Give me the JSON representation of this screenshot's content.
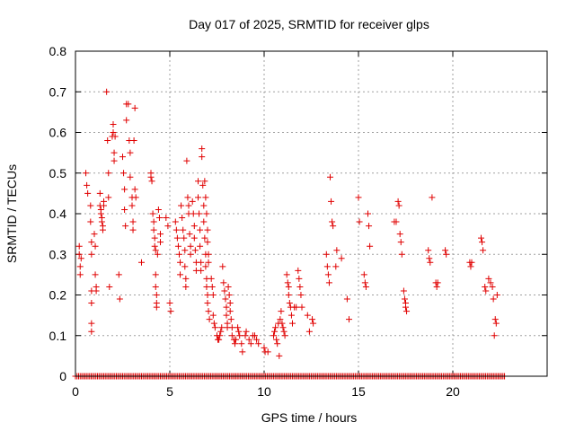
{
  "chart_data": {
    "type": "scatter",
    "title": "Day 017 of 2025, SRMTID for receiver glps",
    "xlabel": "GPS time / hours",
    "ylabel": "SRMTID / TECUs",
    "xlim": [
      0,
      25
    ],
    "ylim": [
      0,
      0.8
    ],
    "xticks": [
      0,
      5,
      10,
      15,
      20
    ],
    "yticks": [
      0,
      0.1,
      0.2,
      0.3,
      0.4,
      0.5,
      0.6,
      0.7,
      0.8
    ],
    "xtick_labels": [
      "0",
      "5",
      "10",
      "15",
      "20"
    ],
    "ytick_labels": [
      "0",
      "0.1",
      "0.2",
      "0.3",
      "0.4",
      "0.5",
      "0.6",
      "0.7",
      "0.8"
    ],
    "grid": true,
    "marker": "+",
    "series": [
      {
        "name": "SRMTID",
        "color": "#e00000",
        "points": [
          [
            0.2,
            0.32
          ],
          [
            0.2,
            0.3
          ],
          [
            0.25,
            0.27
          ],
          [
            0.25,
            0.25
          ],
          [
            0.3,
            0.29
          ],
          [
            0.55,
            0.5
          ],
          [
            0.6,
            0.47
          ],
          [
            0.65,
            0.45
          ],
          [
            0.8,
            0.42
          ],
          [
            0.8,
            0.38
          ],
          [
            0.85,
            0.33
          ],
          [
            0.85,
            0.3
          ],
          [
            0.85,
            0.21
          ],
          [
            0.85,
            0.18
          ],
          [
            0.85,
            0.13
          ],
          [
            0.85,
            0.11
          ],
          [
            1.0,
            0.35
          ],
          [
            1.05,
            0.32
          ],
          [
            1.05,
            0.25
          ],
          [
            1.1,
            0.22
          ],
          [
            1.1,
            0.21
          ],
          [
            1.3,
            0.45
          ],
          [
            1.3,
            0.42
          ],
          [
            1.35,
            0.41
          ],
          [
            1.35,
            0.4
          ],
          [
            1.4,
            0.39
          ],
          [
            1.4,
            0.38
          ],
          [
            1.45,
            0.37
          ],
          [
            1.45,
            0.36
          ],
          [
            1.5,
            0.43
          ],
          [
            1.5,
            0.42
          ],
          [
            1.65,
            0.7
          ],
          [
            1.7,
            0.58
          ],
          [
            1.75,
            0.5
          ],
          [
            1.75,
            0.44
          ],
          [
            1.8,
            0.22
          ],
          [
            1.95,
            0.59
          ],
          [
            2.0,
            0.62
          ],
          [
            2.0,
            0.6
          ],
          [
            2.05,
            0.55
          ],
          [
            2.05,
            0.53
          ],
          [
            2.1,
            0.59
          ],
          [
            2.3,
            0.25
          ],
          [
            2.35,
            0.19
          ],
          [
            2.5,
            0.54
          ],
          [
            2.55,
            0.5
          ],
          [
            2.6,
            0.46
          ],
          [
            2.6,
            0.41
          ],
          [
            2.65,
            0.37
          ],
          [
            2.7,
            0.67
          ],
          [
            2.7,
            0.63
          ],
          [
            2.8,
            0.67
          ],
          [
            2.85,
            0.58
          ],
          [
            2.9,
            0.55
          ],
          [
            2.9,
            0.49
          ],
          [
            3.0,
            0.44
          ],
          [
            3.0,
            0.42
          ],
          [
            3.05,
            0.38
          ],
          [
            3.05,
            0.36
          ],
          [
            3.1,
            0.58
          ],
          [
            3.15,
            0.66
          ],
          [
            3.15,
            0.46
          ],
          [
            3.2,
            0.44
          ],
          [
            3.5,
            0.28
          ],
          [
            4.0,
            0.5
          ],
          [
            4.0,
            0.49
          ],
          [
            4.05,
            0.48
          ],
          [
            4.1,
            0.4
          ],
          [
            4.15,
            0.38
          ],
          [
            4.15,
            0.36
          ],
          [
            4.2,
            0.34
          ],
          [
            4.2,
            0.32
          ],
          [
            4.25,
            0.31
          ],
          [
            4.25,
            0.25
          ],
          [
            4.25,
            0.22
          ],
          [
            4.3,
            0.2
          ],
          [
            4.3,
            0.18
          ],
          [
            4.3,
            0.17
          ],
          [
            4.35,
            0.3
          ],
          [
            4.4,
            0.41
          ],
          [
            4.45,
            0.39
          ],
          [
            4.5,
            0.35
          ],
          [
            4.5,
            0.33
          ],
          [
            4.8,
            0.39
          ],
          [
            4.9,
            0.37
          ],
          [
            5.0,
            0.18
          ],
          [
            5.05,
            0.16
          ],
          [
            5.3,
            0.38
          ],
          [
            5.35,
            0.36
          ],
          [
            5.4,
            0.34
          ],
          [
            5.45,
            0.32
          ],
          [
            5.5,
            0.3
          ],
          [
            5.55,
            0.28
          ],
          [
            5.55,
            0.25
          ],
          [
            5.6,
            0.42
          ],
          [
            5.65,
            0.39
          ],
          [
            5.7,
            0.36
          ],
          [
            5.75,
            0.34
          ],
          [
            5.8,
            0.31
          ],
          [
            5.8,
            0.27
          ],
          [
            5.85,
            0.24
          ],
          [
            5.85,
            0.22
          ],
          [
            5.9,
            0.53
          ],
          [
            5.95,
            0.44
          ],
          [
            6.0,
            0.42
          ],
          [
            6.0,
            0.4
          ],
          [
            6.05,
            0.35
          ],
          [
            6.1,
            0.32
          ],
          [
            6.1,
            0.3
          ],
          [
            6.2,
            0.43
          ],
          [
            6.25,
            0.4
          ],
          [
            6.3,
            0.37
          ],
          [
            6.3,
            0.34
          ],
          [
            6.35,
            0.31
          ],
          [
            6.4,
            0.28
          ],
          [
            6.4,
            0.26
          ],
          [
            6.5,
            0.48
          ],
          [
            6.5,
            0.44
          ],
          [
            6.55,
            0.4
          ],
          [
            6.6,
            0.36
          ],
          [
            6.6,
            0.32
          ],
          [
            6.65,
            0.28
          ],
          [
            6.65,
            0.26
          ],
          [
            6.7,
            0.56
          ],
          [
            6.7,
            0.54
          ],
          [
            6.75,
            0.47
          ],
          [
            6.8,
            0.42
          ],
          [
            6.8,
            0.38
          ],
          [
            6.85,
            0.34
          ],
          [
            6.9,
            0.3
          ],
          [
            6.9,
            0.27
          ],
          [
            6.95,
            0.24
          ],
          [
            6.95,
            0.22
          ],
          [
            7.0,
            0.2
          ],
          [
            7.0,
            0.18
          ],
          [
            7.05,
            0.16
          ],
          [
            7.1,
            0.14
          ],
          [
            6.85,
            0.48
          ],
          [
            6.9,
            0.44
          ],
          [
            6.95,
            0.4
          ],
          [
            7.0,
            0.36
          ],
          [
            7.0,
            0.33
          ],
          [
            7.05,
            0.3
          ],
          [
            7.05,
            0.28
          ],
          [
            7.2,
            0.24
          ],
          [
            7.25,
            0.22
          ],
          [
            7.3,
            0.2
          ],
          [
            7.3,
            0.15
          ],
          [
            7.35,
            0.13
          ],
          [
            7.4,
            0.12
          ],
          [
            7.5,
            0.1
          ],
          [
            7.55,
            0.09
          ],
          [
            7.6,
            0.09
          ],
          [
            7.65,
            0.1
          ],
          [
            7.7,
            0.11
          ],
          [
            7.75,
            0.12
          ],
          [
            7.8,
            0.27
          ],
          [
            7.85,
            0.23
          ],
          [
            7.9,
            0.21
          ],
          [
            7.95,
            0.19
          ],
          [
            8.0,
            0.17
          ],
          [
            8.0,
            0.15
          ],
          [
            8.05,
            0.13
          ],
          [
            8.05,
            0.12
          ],
          [
            8.1,
            0.22
          ],
          [
            8.15,
            0.2
          ],
          [
            8.2,
            0.18
          ],
          [
            8.2,
            0.16
          ],
          [
            8.25,
            0.14
          ],
          [
            8.3,
            0.12
          ],
          [
            8.3,
            0.1
          ],
          [
            8.4,
            0.09
          ],
          [
            8.45,
            0.08
          ],
          [
            8.5,
            0.09
          ],
          [
            8.6,
            0.12
          ],
          [
            8.65,
            0.11
          ],
          [
            8.7,
            0.1
          ],
          [
            8.8,
            0.08
          ],
          [
            8.85,
            0.06
          ],
          [
            9.0,
            0.1
          ],
          [
            9.05,
            0.11
          ],
          [
            9.2,
            0.09
          ],
          [
            9.3,
            0.08
          ],
          [
            9.4,
            0.1
          ],
          [
            9.5,
            0.1
          ],
          [
            9.6,
            0.09
          ],
          [
            9.7,
            0.08
          ],
          [
            10.0,
            0.07
          ],
          [
            10.05,
            0.06
          ],
          [
            10.2,
            0.06
          ],
          [
            10.5,
            0.1
          ],
          [
            10.55,
            0.11
          ],
          [
            10.6,
            0.12
          ],
          [
            10.65,
            0.09
          ],
          [
            10.7,
            0.08
          ],
          [
            10.75,
            0.13
          ],
          [
            10.8,
            0.05
          ],
          [
            10.85,
            0.14
          ],
          [
            10.9,
            0.16
          ],
          [
            10.95,
            0.13
          ],
          [
            11.0,
            0.12
          ],
          [
            11.05,
            0.11
          ],
          [
            11.1,
            0.1
          ],
          [
            11.2,
            0.25
          ],
          [
            11.25,
            0.23
          ],
          [
            11.3,
            0.22
          ],
          [
            11.3,
            0.2
          ],
          [
            11.35,
            0.18
          ],
          [
            11.4,
            0.17
          ],
          [
            11.45,
            0.15
          ],
          [
            11.5,
            0.13
          ],
          [
            11.6,
            0.17
          ],
          [
            11.7,
            0.17
          ],
          [
            11.8,
            0.26
          ],
          [
            11.85,
            0.24
          ],
          [
            11.9,
            0.22
          ],
          [
            11.95,
            0.2
          ],
          [
            12.0,
            0.17
          ],
          [
            12.3,
            0.15
          ],
          [
            12.4,
            0.11
          ],
          [
            12.55,
            0.14
          ],
          [
            12.6,
            0.13
          ],
          [
            13.3,
            0.3
          ],
          [
            13.35,
            0.27
          ],
          [
            13.4,
            0.25
          ],
          [
            13.45,
            0.23
          ],
          [
            13.5,
            0.49
          ],
          [
            13.55,
            0.43
          ],
          [
            13.6,
            0.38
          ],
          [
            13.65,
            0.37
          ],
          [
            13.8,
            0.27
          ],
          [
            13.85,
            0.31
          ],
          [
            14.1,
            0.29
          ],
          [
            14.4,
            0.19
          ],
          [
            14.5,
            0.14
          ],
          [
            15.0,
            0.44
          ],
          [
            15.05,
            0.38
          ],
          [
            15.3,
            0.25
          ],
          [
            15.35,
            0.23
          ],
          [
            15.4,
            0.22
          ],
          [
            15.5,
            0.4
          ],
          [
            15.55,
            0.37
          ],
          [
            15.6,
            0.32
          ],
          [
            16.9,
            0.38
          ],
          [
            17.0,
            0.38
          ],
          [
            17.1,
            0.43
          ],
          [
            17.15,
            0.42
          ],
          [
            17.2,
            0.35
          ],
          [
            17.25,
            0.33
          ],
          [
            17.3,
            0.3
          ],
          [
            17.4,
            0.21
          ],
          [
            17.45,
            0.19
          ],
          [
            17.5,
            0.18
          ],
          [
            17.5,
            0.17
          ],
          [
            17.55,
            0.16
          ],
          [
            18.7,
            0.31
          ],
          [
            18.75,
            0.29
          ],
          [
            18.8,
            0.28
          ],
          [
            18.9,
            0.44
          ],
          [
            19.1,
            0.23
          ],
          [
            19.15,
            0.22
          ],
          [
            19.2,
            0.23
          ],
          [
            19.6,
            0.31
          ],
          [
            19.65,
            0.3
          ],
          [
            20.9,
            0.28
          ],
          [
            20.95,
            0.27
          ],
          [
            21.0,
            0.28
          ],
          [
            21.5,
            0.34
          ],
          [
            21.55,
            0.33
          ],
          [
            21.6,
            0.31
          ],
          [
            21.7,
            0.22
          ],
          [
            21.75,
            0.21
          ],
          [
            21.9,
            0.24
          ],
          [
            22.0,
            0.23
          ],
          [
            22.1,
            0.22
          ],
          [
            22.15,
            0.19
          ],
          [
            22.2,
            0.1
          ],
          [
            22.25,
            0.14
          ],
          [
            22.3,
            0.13
          ],
          [
            22.35,
            0.2
          ]
        ]
      }
    ],
    "baseline_series": {
      "name": "SRMTID zero values",
      "y": 0,
      "x_start": 0.0,
      "x_end": 22.8,
      "x_step": 0.0833
    }
  }
}
